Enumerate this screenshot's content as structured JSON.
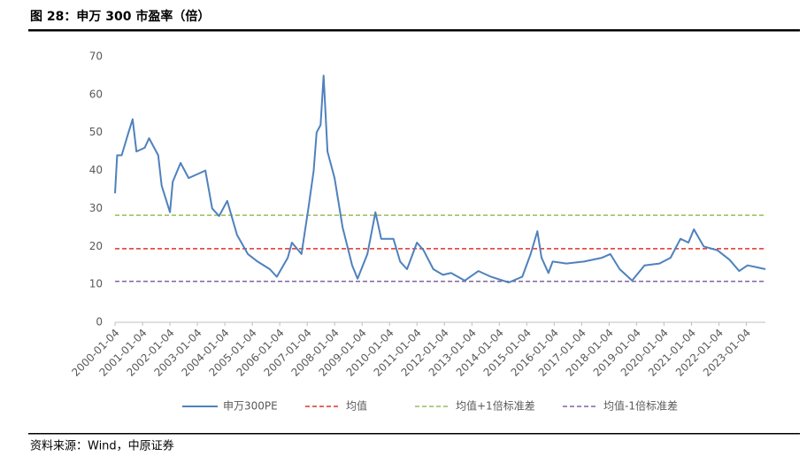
{
  "chart_data": {
    "type": "line",
    "title": "图 28：申万 300 市盈率（倍）",
    "source": "资料来源：Wind，中原证券",
    "x": [
      "2000-01-04",
      "2000-02-01",
      "2000-04-01",
      "2000-07-01",
      "2000-08-25",
      "2000-10-15",
      "2001-02-01",
      "2001-04-01",
      "2001-08-01",
      "2001-09-15",
      "2002-01-04",
      "2002-02-10",
      "2002-05-25",
      "2002-09-10",
      "2003-04-20",
      "2003-07-20",
      "2003-10-20",
      "2004-02-05",
      "2004-06-15",
      "2004-11-05",
      "2005-03-15",
      "2005-08-25",
      "2005-11-25",
      "2006-04-20",
      "2006-06-15",
      "2006-10-20",
      "2007-01-20",
      "2007-04-01",
      "2007-05-10",
      "2007-07-01",
      "2007-08-10",
      "2007-10-01",
      "2008-01-04",
      "2008-04-20",
      "2008-08-25",
      "2008-11-05",
      "2009-03-15",
      "2009-07-01",
      "2009-09-15",
      "2010-02-25",
      "2010-05-25",
      "2010-08-25",
      "2011-01-04",
      "2011-04-01",
      "2011-08-10",
      "2011-12-15",
      "2012-04-01",
      "2012-10-01",
      "2013-04-01",
      "2013-09-15",
      "2014-05-10",
      "2014-11-05",
      "2015-02-25",
      "2015-05-25",
      "2015-07-20",
      "2015-10-20",
      "2015-12-15",
      "2016-06-15",
      "2017-02-05",
      "2017-10-01",
      "2018-01-20",
      "2018-05-25",
      "2018-11-05",
      "2019-04-20",
      "2019-11-05",
      "2020-04-01",
      "2020-08-10",
      "2020-11-25",
      "2021-02-05",
      "2021-06-15",
      "2021-12-15",
      "2022-05-25",
      "2022-10-01",
      "2023-01-20",
      "2023-05-25",
      "2023-09-15"
    ],
    "series": [
      {
        "name": "申万300PE",
        "color": "#4f81bd",
        "values": [
          34,
          44,
          44,
          50,
          53.5,
          45,
          46,
          48.5,
          44,
          36,
          29,
          37,
          42,
          38,
          40,
          30,
          28,
          32,
          23,
          18,
          16,
          14,
          12,
          17,
          21,
          18,
          30,
          40,
          50,
          52,
          65,
          45,
          38,
          25,
          15,
          11.5,
          18,
          29,
          22,
          22,
          16,
          14,
          21,
          19,
          14,
          12.5,
          13,
          11,
          13.5,
          12,
          10.5,
          12,
          18,
          24,
          17,
          13,
          16,
          15.5,
          16,
          17,
          18,
          14,
          11,
          15,
          15.5,
          17,
          22,
          21,
          24.5,
          20,
          19,
          16.5,
          13.5,
          15,
          14.5,
          14
        ]
      }
    ],
    "reference_lines": [
      {
        "name": "均值",
        "color": "#e0332c",
        "value": 19.4
      },
      {
        "name": "均值+1倍标准差",
        "color": "#9bbb59",
        "value": 28.2
      },
      {
        "name": "均值-1倍标准差",
        "color": "#8064a2",
        "value": 10.8
      }
    ],
    "xlim": [
      "2000-01-04",
      "2023-09-15"
    ],
    "xticks": [
      "2000-01-04",
      "2001-01-04",
      "2002-01-04",
      "2003-01-04",
      "2004-01-04",
      "2005-01-04",
      "2006-01-04",
      "2007-01-04",
      "2008-01-04",
      "2009-01-04",
      "2010-01-04",
      "2011-01-04",
      "2012-01-04",
      "2013-01-04",
      "2014-01-04",
      "2015-01-04",
      "2016-01-04",
      "2017-01-04",
      "2018-01-04",
      "2019-01-04",
      "2020-01-04",
      "2021-01-04",
      "2022-01-04",
      "2023-01-04"
    ],
    "ylim": [
      0,
      70
    ],
    "yticks": [
      0,
      10,
      20,
      30,
      40,
      50,
      60,
      70
    ],
    "grid": false,
    "legend": "bottom"
  }
}
